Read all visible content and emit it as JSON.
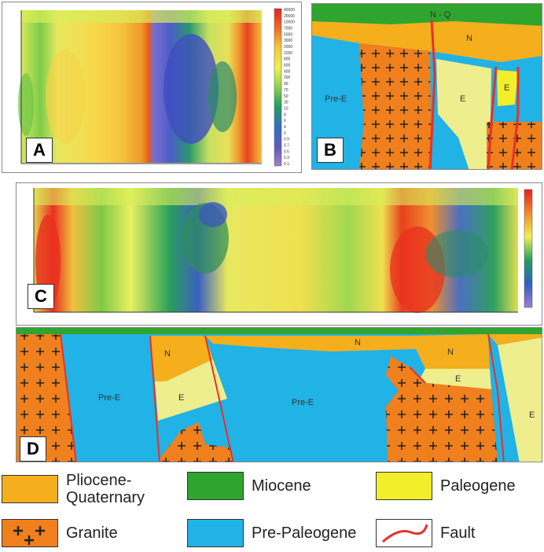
{
  "panels": {
    "A": {
      "label": "A"
    },
    "B": {
      "label": "B"
    },
    "C": {
      "label": "C"
    },
    "D": {
      "label": "D"
    }
  },
  "colorbar_A_ticks": [
    "40000",
    "20000",
    "10000",
    "7000",
    "5000",
    "3000",
    "2000",
    "1000",
    "800",
    "600",
    "400",
    "200",
    "90",
    "70",
    "50",
    "30",
    "10",
    "8",
    "6",
    "4",
    "2",
    "0.9",
    "0.7",
    "0.5",
    "0.3",
    "0.1"
  ],
  "units": {
    "B": {
      "nq": "N - Q",
      "n": "N",
      "pre_e": "Pre-E",
      "e1": "E",
      "e2": "E"
    },
    "D": {
      "n1": "N",
      "n2": "N",
      "n3": "N",
      "e1": "E",
      "e2": "E",
      "e3": "E",
      "pre_e1": "Pre-E",
      "pre_e2": "Pre-E"
    }
  },
  "legend": [
    {
      "label": "Pliocene-\nQuaternary",
      "color": "#f5ae1c",
      "pattern": "solid"
    },
    {
      "label": "Miocene",
      "color": "#2fa52f",
      "pattern": "solid"
    },
    {
      "label": "Paleogene",
      "color": "#f2ee2a",
      "pattern": "solid"
    },
    {
      "label": "Granite",
      "color": "#f07f1e",
      "pattern": "crosses"
    },
    {
      "label": "Pre-Paleogene",
      "color": "#21b2e6",
      "pattern": "solid"
    },
    {
      "label": "Fault",
      "color": "#e8302a",
      "pattern": "line"
    }
  ],
  "colors": {
    "miocene": "#2fa52f",
    "plioquat": "#f5ae1c",
    "paleogene": "#eeee8e",
    "paleogene_bright": "#f2ee2a",
    "granite": "#f07f1e",
    "prepaleo": "#21b2e6",
    "fault": "#e8302a"
  }
}
